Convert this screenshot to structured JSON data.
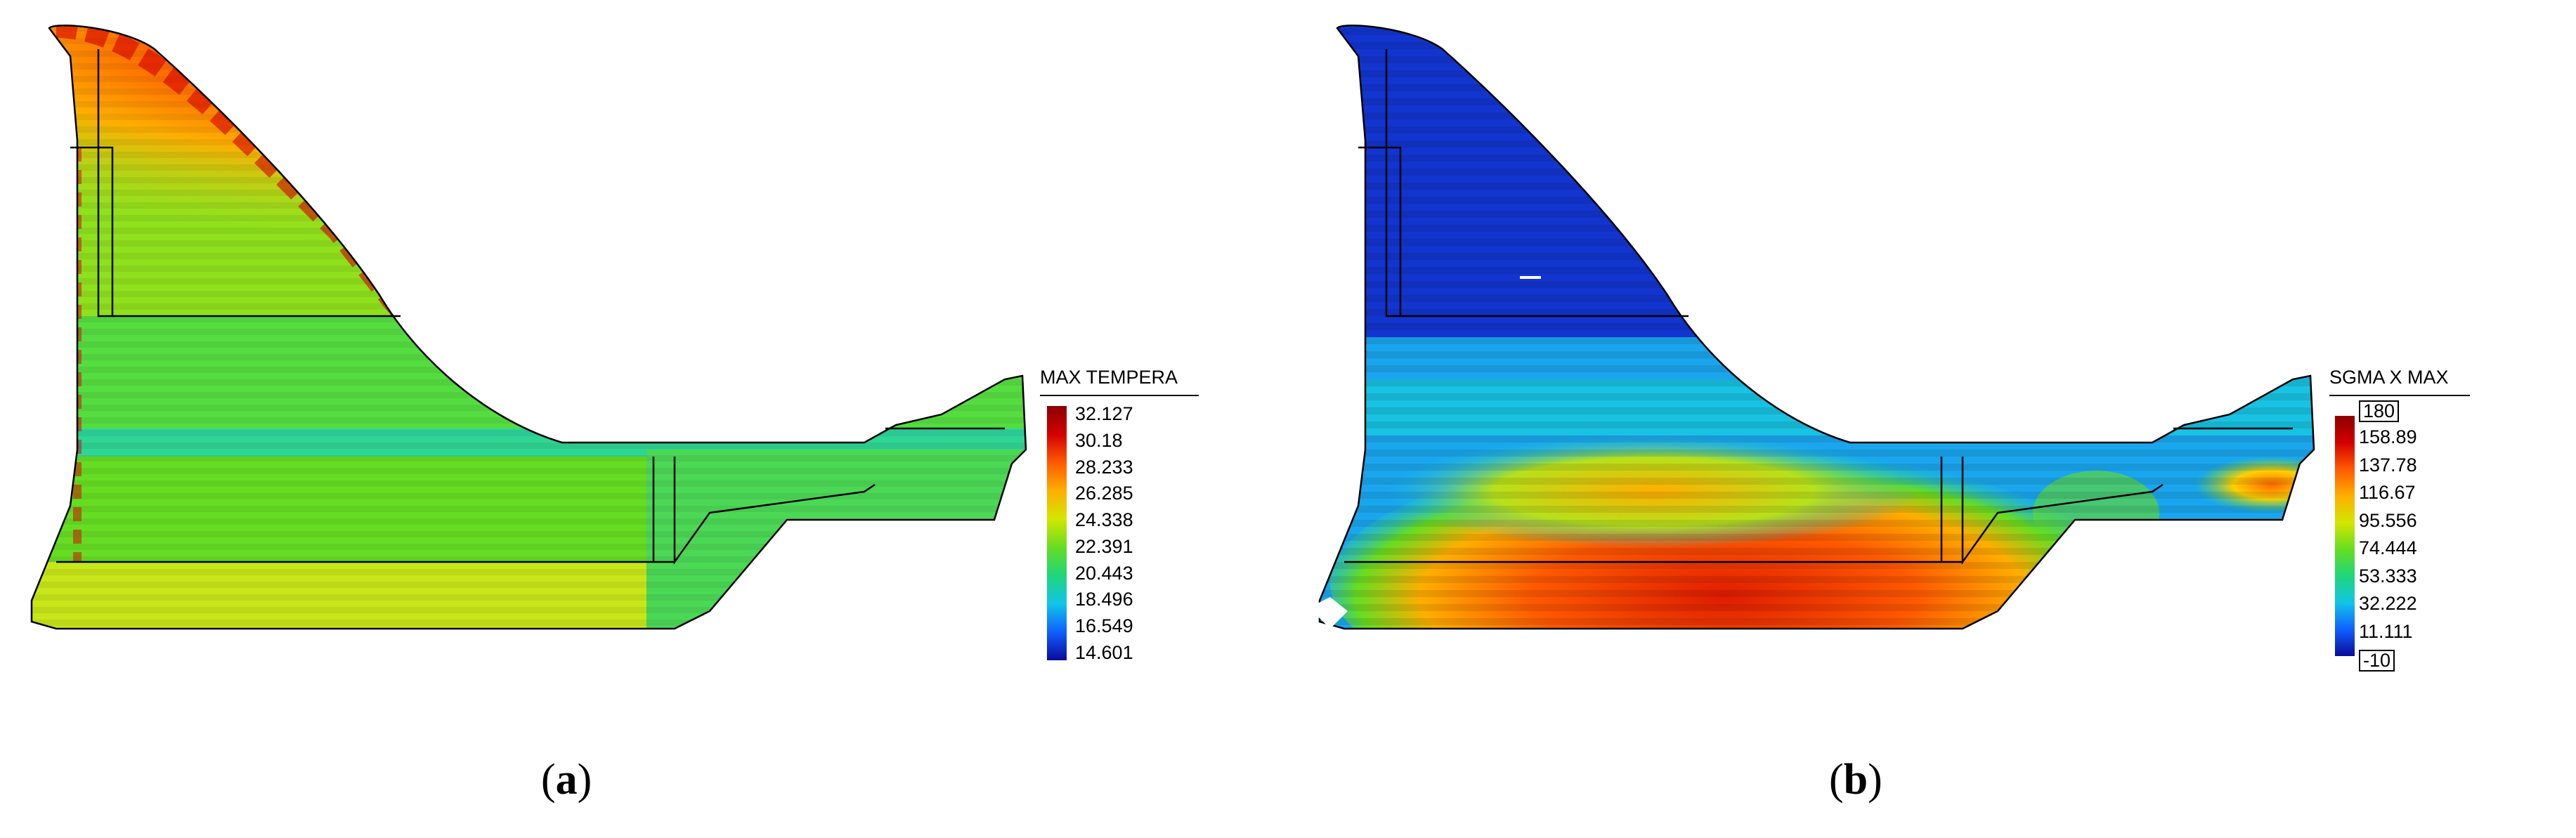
{
  "panels": [
    {
      "id": "a",
      "caption_open": "(",
      "caption_letter": "a",
      "caption_close": ")",
      "legend": {
        "title": "MAX TEMPERA",
        "ticks": [
          "32.127",
          "30.18",
          "28.233",
          "26.285",
          "24.338",
          "22.391",
          "20.443",
          "18.496",
          "16.549",
          "14.601"
        ],
        "boxed_ticks": [],
        "colors": [
          "#8b0000",
          "#d40000",
          "#ff5a00",
          "#ffae00",
          "#d4e600",
          "#66dd22",
          "#1fd67a",
          "#12c4e8",
          "#1060ff",
          "#0a0a9a"
        ]
      }
    },
    {
      "id": "b",
      "caption_open": "(",
      "caption_letter": "b",
      "caption_close": ")",
      "legend": {
        "title": "SGMA X MAX",
        "ticks": [
          "180",
          "158.89",
          "137.78",
          "116.67",
          "95.556",
          "74.444",
          "53.333",
          "32.222",
          "11.111",
          "-10"
        ],
        "boxed_ticks": [
          0,
          9
        ],
        "colors": [
          "#8b0000",
          "#d40000",
          "#ff5a00",
          "#ffae00",
          "#d4e600",
          "#66dd22",
          "#1fd67a",
          "#12c4e8",
          "#1060ff",
          "#0a0a9a"
        ]
      }
    }
  ]
}
